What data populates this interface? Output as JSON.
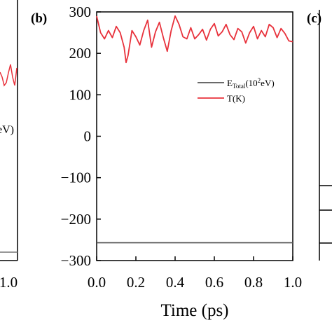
{
  "panels": {
    "b_label": "(b)",
    "c_label": "(c)"
  },
  "left_fragment": {
    "x_tick": "1.0",
    "legend_fragment": "eV)"
  },
  "chart_data": {
    "type": "line",
    "xlabel": "Time (ps)",
    "ylabel": "",
    "xlim": [
      0.0,
      1.0
    ],
    "ylim": [
      -300,
      300
    ],
    "x_ticks": [
      "0.0",
      "0.2",
      "0.4",
      "0.6",
      "0.8",
      "1.0"
    ],
    "y_ticks": [
      "300",
      "200",
      "100",
      "0",
      "-100",
      "-200",
      "-300"
    ],
    "grid": false,
    "legend_position": "right",
    "series": [
      {
        "name": "E_Total(10^2eV)",
        "legend": {
          "main": "E",
          "sub": "Total",
          "paren_open": "(10",
          "sup": "2",
          "rest": "eV)"
        },
        "color": "#555555",
        "x": [
          0.0,
          1.0
        ],
        "y": [
          -257,
          -257
        ]
      },
      {
        "name": "T(K)",
        "legend": {
          "main": "T(K)"
        },
        "color": "#e8323c",
        "x": [
          0.0,
          0.02,
          0.04,
          0.06,
          0.08,
          0.1,
          0.12,
          0.14,
          0.15,
          0.16,
          0.18,
          0.2,
          0.22,
          0.24,
          0.26,
          0.28,
          0.3,
          0.32,
          0.34,
          0.36,
          0.38,
          0.4,
          0.42,
          0.44,
          0.46,
          0.48,
          0.5,
          0.52,
          0.54,
          0.56,
          0.58,
          0.6,
          0.62,
          0.64,
          0.66,
          0.68,
          0.7,
          0.72,
          0.74,
          0.76,
          0.78,
          0.8,
          0.82,
          0.84,
          0.86,
          0.88,
          0.9,
          0.92,
          0.94,
          0.96,
          0.98,
          1.0
        ],
        "y": [
          290,
          250,
          235,
          255,
          238,
          265,
          250,
          215,
          178,
          195,
          255,
          240,
          220,
          255,
          280,
          215,
          252,
          275,
          238,
          205,
          255,
          290,
          270,
          240,
          235,
          262,
          235,
          245,
          258,
          232,
          258,
          272,
          242,
          252,
          270,
          245,
          233,
          260,
          252,
          225,
          250,
          265,
          235,
          255,
          240,
          270,
          262,
          238,
          260,
          248,
          230,
          228
        ]
      }
    ]
  }
}
